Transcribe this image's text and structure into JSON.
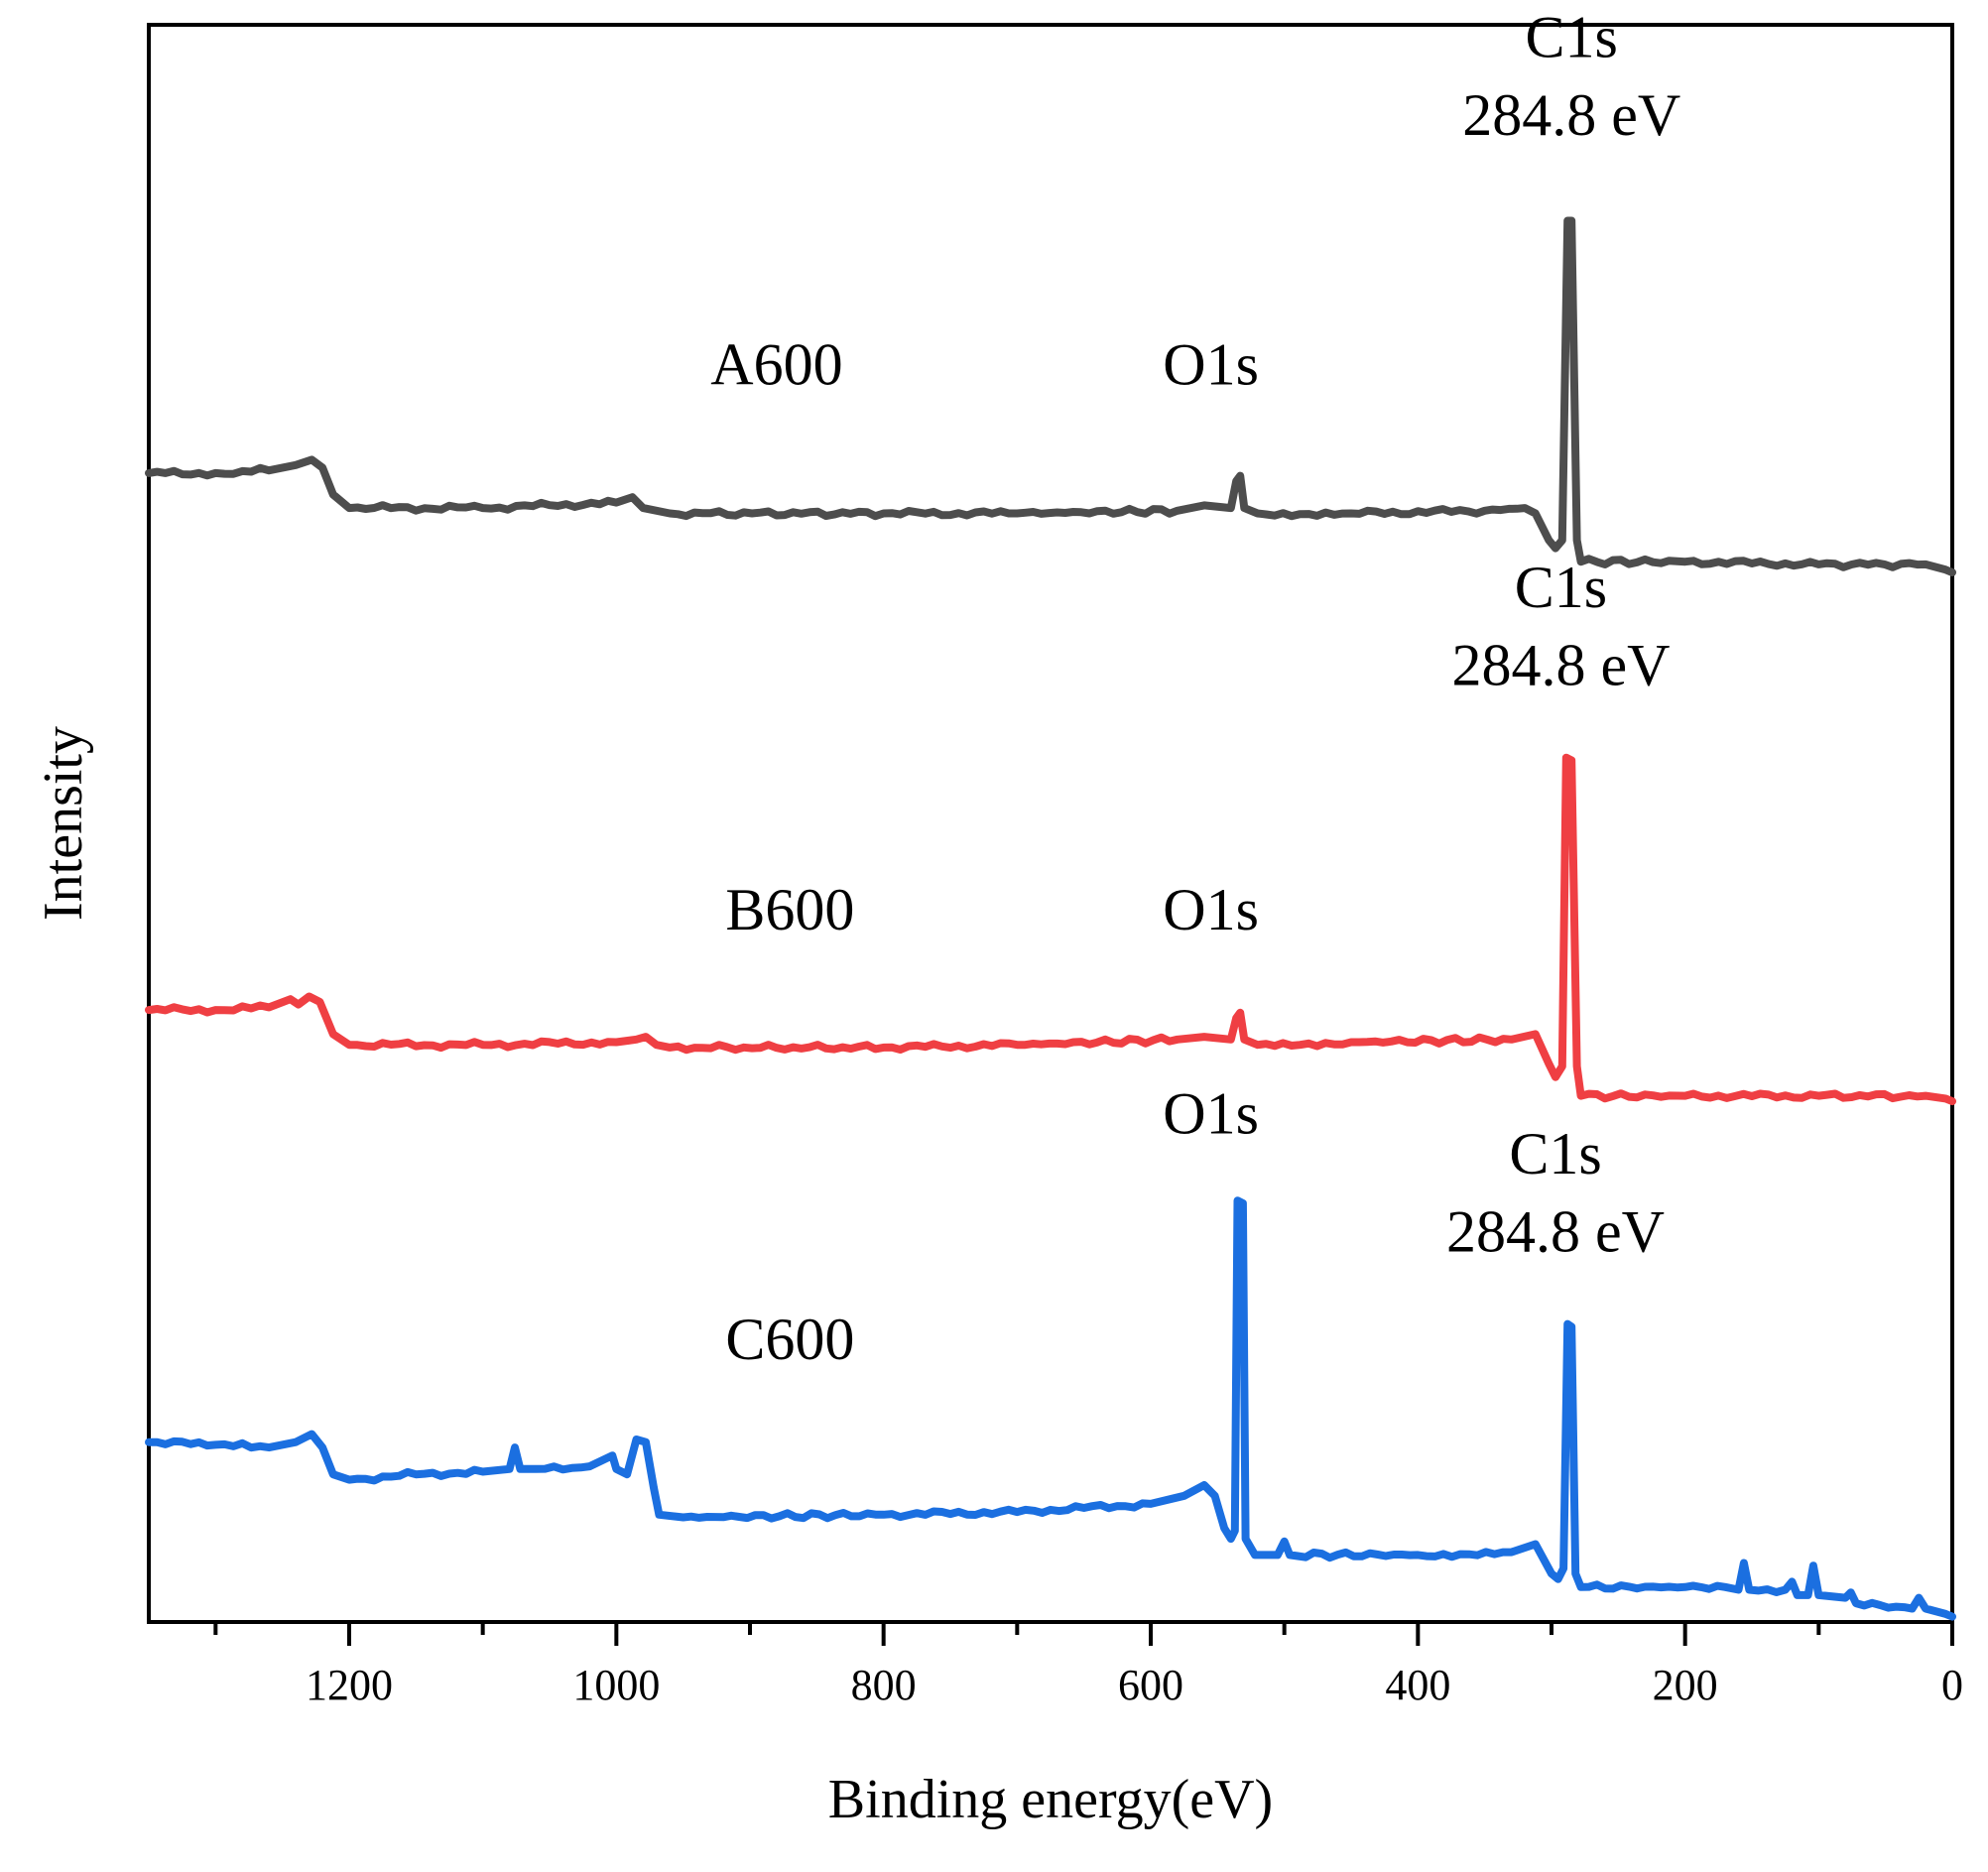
{
  "chart_data": {
    "type": "line",
    "title": "",
    "xlabel": "Binding energy(eV)",
    "ylabel": "Intensity",
    "xlim": [
      1350,
      0
    ],
    "ylim": [
      -0.05,
      5.9
    ],
    "grid": false,
    "x_ticks": [
      1200,
      1000,
      800,
      600,
      400,
      200,
      0
    ],
    "x_tick_labels": [
      "1200",
      "1000",
      "800",
      "600",
      "400",
      "200",
      "0"
    ],
    "x_minor_ticks": [
      1300,
      1100,
      900,
      700,
      500,
      300,
      100
    ],
    "y_ticks_visible": false,
    "series": [
      {
        "name": "A600",
        "color": "#4d4d4d",
        "label_x": 900,
        "points": [
          [
            1350,
            4.23
          ],
          [
            1300,
            4.23
          ],
          [
            1260,
            4.24
          ],
          [
            1240,
            4.26
          ],
          [
            1228,
            4.28
          ],
          [
            1220,
            4.25
          ],
          [
            1212,
            4.15
          ],
          [
            1200,
            4.1
          ],
          [
            1100,
            4.1
          ],
          [
            1000,
            4.12
          ],
          [
            988,
            4.14
          ],
          [
            980,
            4.1
          ],
          [
            960,
            4.08
          ],
          [
            800,
            4.08
          ],
          [
            700,
            4.08
          ],
          [
            580,
            4.09
          ],
          [
            560,
            4.11
          ],
          [
            540,
            4.1
          ],
          [
            536,
            4.2
          ],
          [
            533,
            4.22
          ],
          [
            530,
            4.1
          ],
          [
            520,
            4.08
          ],
          [
            450,
            4.08
          ],
          [
            350,
            4.09
          ],
          [
            320,
            4.1
          ],
          [
            312,
            4.08
          ],
          [
            302,
            3.98
          ],
          [
            297,
            3.95
          ],
          [
            292,
            3.98
          ],
          [
            288,
            5.17
          ],
          [
            285,
            5.17
          ],
          [
            281,
            3.98
          ],
          [
            278,
            3.9
          ],
          [
            200,
            3.9
          ],
          [
            100,
            3.89
          ],
          [
            20,
            3.89
          ],
          [
            5,
            3.87
          ],
          [
            0,
            3.86
          ]
        ]
      },
      {
        "name": "B600",
        "color": "#ef3f43",
        "label_x": 890,
        "points": [
          [
            1350,
            2.23
          ],
          [
            1300,
            2.23
          ],
          [
            1260,
            2.24
          ],
          [
            1244,
            2.27
          ],
          [
            1238,
            2.25
          ],
          [
            1230,
            2.28
          ],
          [
            1222,
            2.26
          ],
          [
            1212,
            2.14
          ],
          [
            1200,
            2.1
          ],
          [
            1100,
            2.1
          ],
          [
            1000,
            2.11
          ],
          [
            985,
            2.12
          ],
          [
            978,
            2.13
          ],
          [
            970,
            2.1
          ],
          [
            960,
            2.09
          ],
          [
            800,
            2.09
          ],
          [
            700,
            2.1
          ],
          [
            580,
            2.12
          ],
          [
            560,
            2.13
          ],
          [
            540,
            2.12
          ],
          [
            536,
            2.2
          ],
          [
            533,
            2.22
          ],
          [
            530,
            2.12
          ],
          [
            520,
            2.1
          ],
          [
            450,
            2.11
          ],
          [
            330,
            2.12
          ],
          [
            312,
            2.14
          ],
          [
            302,
            2.03
          ],
          [
            297,
            1.98
          ],
          [
            292,
            2.02
          ],
          [
            289,
            3.17
          ],
          [
            285,
            3.16
          ],
          [
            281,
            2.02
          ],
          [
            278,
            1.91
          ],
          [
            200,
            1.91
          ],
          [
            100,
            1.91
          ],
          [
            20,
            1.91
          ],
          [
            5,
            1.9
          ],
          [
            0,
            1.89
          ]
        ]
      },
      {
        "name": "C600",
        "color": "#1b6fe0",
        "label_x": 890,
        "points": [
          [
            1350,
            0.62
          ],
          [
            1300,
            0.61
          ],
          [
            1260,
            0.6
          ],
          [
            1240,
            0.62
          ],
          [
            1228,
            0.65
          ],
          [
            1220,
            0.6
          ],
          [
            1212,
            0.5
          ],
          [
            1200,
            0.48
          ],
          [
            1150,
            0.5
          ],
          [
            1100,
            0.51
          ],
          [
            1080,
            0.52
          ],
          [
            1076,
            0.6
          ],
          [
            1072,
            0.52
          ],
          [
            1060,
            0.52
          ],
          [
            1020,
            0.53
          ],
          [
            1003,
            0.57
          ],
          [
            1000,
            0.52
          ],
          [
            992,
            0.5
          ],
          [
            985,
            0.63
          ],
          [
            978,
            0.62
          ],
          [
            972,
            0.45
          ],
          [
            968,
            0.35
          ],
          [
            950,
            0.34
          ],
          [
            800,
            0.35
          ],
          [
            700,
            0.36
          ],
          [
            600,
            0.39
          ],
          [
            575,
            0.42
          ],
          [
            560,
            0.46
          ],
          [
            552,
            0.42
          ],
          [
            545,
            0.3
          ],
          [
            540,
            0.26
          ],
          [
            537,
            0.29
          ],
          [
            535,
            1.52
          ],
          [
            531,
            1.51
          ],
          [
            529,
            0.26
          ],
          [
            522,
            0.2
          ],
          [
            505,
            0.2
          ],
          [
            500,
            0.25
          ],
          [
            496,
            0.2
          ],
          [
            400,
            0.2
          ],
          [
            330,
            0.21
          ],
          [
            312,
            0.24
          ],
          [
            300,
            0.13
          ],
          [
            295,
            0.11
          ],
          [
            291,
            0.15
          ],
          [
            288,
            1.06
          ],
          [
            285,
            1.05
          ],
          [
            282,
            0.13
          ],
          [
            278,
            0.08
          ],
          [
            200,
            0.08
          ],
          [
            170,
            0.08
          ],
          [
            160,
            0.07
          ],
          [
            156,
            0.17
          ],
          [
            152,
            0.07
          ],
          [
            125,
            0.07
          ],
          [
            120,
            0.1
          ],
          [
            116,
            0.05
          ],
          [
            108,
            0.05
          ],
          [
            104,
            0.16
          ],
          [
            100,
            0.05
          ],
          [
            80,
            0.04
          ],
          [
            76,
            0.06
          ],
          [
            72,
            0.02
          ],
          [
            30,
            0.0
          ],
          [
            25,
            0.04
          ],
          [
            20,
            0.0
          ],
          [
            5,
            -0.02
          ],
          [
            0,
            -0.03
          ]
        ]
      }
    ],
    "annotations": [
      {
        "name": "A600",
        "x": 880,
        "y": 4.56,
        "series_index": 0
      },
      {
        "name": "O1s",
        "x": 555,
        "y": 4.56,
        "series_index": 0
      },
      {
        "name": "C1s",
        "x": 285,
        "y": 5.78,
        "series_index": 0
      },
      {
        "name": "284.8 eV",
        "x": 285,
        "y": 5.49,
        "series_index": 0
      },
      {
        "name": "B600",
        "x": 870,
        "y": 2.53,
        "series_index": 1
      },
      {
        "name": "O1s",
        "x": 555,
        "y": 2.53,
        "series_index": 1
      },
      {
        "name": "C1s",
        "x": 293,
        "y": 3.73,
        "series_index": 1
      },
      {
        "name": "284.8 eV",
        "x": 293,
        "y": 3.44,
        "series_index": 1
      },
      {
        "name": "C600",
        "x": 870,
        "y": 0.93,
        "series_index": 2
      },
      {
        "name": "O1s",
        "x": 555,
        "y": 1.77,
        "series_index": 2
      },
      {
        "name": "C1s",
        "x": 297,
        "y": 1.62,
        "series_index": 2
      },
      {
        "name": "284.8 eV",
        "x": 297,
        "y": 1.33,
        "series_index": 2
      }
    ]
  }
}
